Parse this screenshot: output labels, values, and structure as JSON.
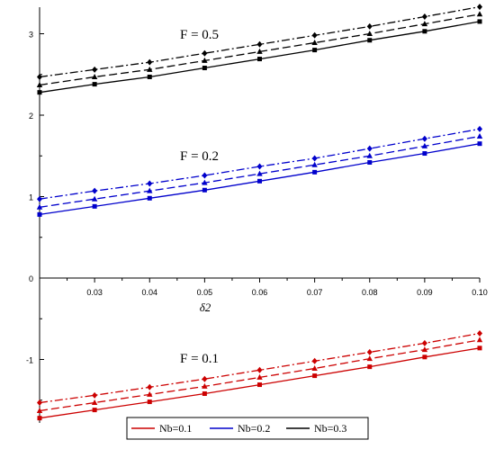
{
  "chart_data": {
    "type": "line",
    "xlabel": "δ2",
    "ylabel": "",
    "xlim": [
      0.02,
      0.1
    ],
    "ylim": [
      -1.75,
      3.35
    ],
    "x_ticks": [
      0.03,
      0.04,
      0.05,
      0.06,
      0.07,
      0.08,
      0.09,
      0.1
    ],
    "x_tick_labels": [
      "0.03",
      "0.04",
      "0.05",
      "0.06",
      "0.07",
      "0.08",
      "0.09",
      "0.10"
    ],
    "y_labeled_ticks": [
      -1,
      0,
      1,
      2,
      3
    ],
    "y_tick_labels": [
      "-1",
      "0",
      "1",
      "2",
      "3"
    ],
    "y_minor_ticks": [
      -1.5,
      -0.5,
      0.5,
      1.5,
      2.5
    ],
    "x": [
      0.02,
      0.03,
      0.04,
      0.05,
      0.06,
      0.07,
      0.08,
      0.09,
      0.1
    ],
    "legend_position": "bottom-center",
    "grid": false,
    "groups": [
      {
        "label": "F = 0.5",
        "color": "#000000",
        "series": [
          {
            "name": "Nb=0.1",
            "style": "solid",
            "marker": "square",
            "values": [
              2.28,
              2.38,
              2.47,
              2.58,
              2.69,
              2.8,
              2.92,
              3.03,
              3.15
            ]
          },
          {
            "name": "Nb=0.2",
            "style": "dash",
            "marker": "triangle",
            "values": [
              2.37,
              2.47,
              2.56,
              2.67,
              2.78,
              2.89,
              3.0,
              3.12,
              3.24
            ]
          },
          {
            "name": "Nb=0.3",
            "style": "dashdot",
            "marker": "diamond",
            "values": [
              2.47,
              2.56,
              2.65,
              2.76,
              2.87,
              2.98,
              3.09,
              3.21,
              3.33
            ]
          }
        ]
      },
      {
        "label": "F = 0.2",
        "color": "#0000cc",
        "series": [
          {
            "name": "Nb=0.1",
            "style": "solid",
            "marker": "square",
            "values": [
              0.78,
              0.88,
              0.98,
              1.08,
              1.19,
              1.3,
              1.42,
              1.53,
              1.65
            ]
          },
          {
            "name": "Nb=0.2",
            "style": "dash",
            "marker": "triangle",
            "values": [
              0.87,
              0.97,
              1.07,
              1.17,
              1.28,
              1.39,
              1.5,
              1.62,
              1.74
            ]
          },
          {
            "name": "Nb=0.3",
            "style": "dashdot",
            "marker": "diamond",
            "values": [
              0.97,
              1.07,
              1.16,
              1.26,
              1.37,
              1.47,
              1.59,
              1.71,
              1.83
            ]
          }
        ]
      },
      {
        "label": "F = 0.1",
        "color": "#cc0000",
        "series": [
          {
            "name": "Nb=0.1",
            "style": "solid",
            "marker": "square",
            "values": [
              -1.72,
              -1.62,
              -1.52,
              -1.42,
              -1.31,
              -1.2,
              -1.09,
              -0.97,
              -0.86
            ]
          },
          {
            "name": "Nb=0.2",
            "style": "dash",
            "marker": "triangle",
            "values": [
              -1.63,
              -1.53,
              -1.43,
              -1.33,
              -1.22,
              -1.11,
              -0.99,
              -0.88,
              -0.76
            ]
          },
          {
            "name": "Nb=0.3",
            "style": "dashdot",
            "marker": "diamond",
            "values": [
              -1.53,
              -1.44,
              -1.34,
              -1.24,
              -1.13,
              -1.02,
              -0.91,
              -0.8,
              -0.68
            ]
          }
        ]
      }
    ],
    "legend": [
      {
        "name": "Nb=0.1",
        "color": "#cc0000"
      },
      {
        "name": "Nb=0.2",
        "color": "#0000cc"
      },
      {
        "name": "Nb=0.3",
        "color": "#000000"
      }
    ]
  }
}
